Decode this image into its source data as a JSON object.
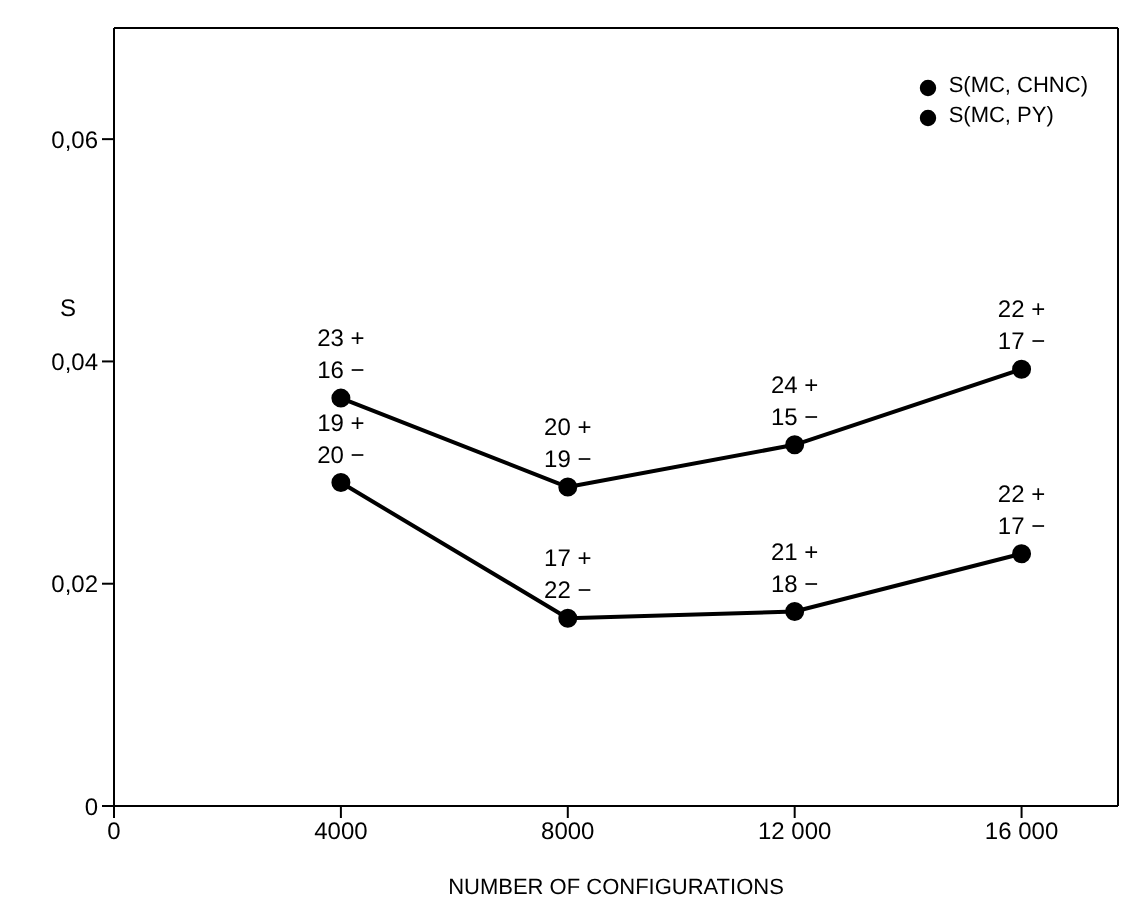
{
  "chart_data": {
    "type": "line",
    "xlabel": "NUMBER OF CONFIGURATIONS",
    "ylabel": "S",
    "x": [
      4000,
      8000,
      12000,
      16000
    ],
    "series": [
      {
        "name": "S(MC, CHNC)",
        "color": "#000000",
        "values": [
          0.0367,
          0.0287,
          0.0325,
          0.0393
        ]
      },
      {
        "name": "S(MC, PY)",
        "color": "#000000",
        "values": [
          0.0291,
          0.0169,
          0.0175,
          0.0227
        ]
      }
    ],
    "annotations": [
      {
        "text": "23 + 16 −",
        "x": 4000,
        "y": 0.0367
      },
      {
        "text": "20 + 19 −",
        "x": 8000,
        "y": 0.0287
      },
      {
        "text": "24 + 15 −",
        "x": 12000,
        "y": 0.0325
      },
      {
        "text": "22 + 17 −",
        "x": 16000,
        "y": 0.0393
      },
      {
        "text": "19 + 20 −",
        "x": 4000,
        "y": 0.0291
      },
      {
        "text": "17 + 22 −",
        "x": 8000,
        "y": 0.0169
      },
      {
        "text": "21 + 18 −",
        "x": 12000,
        "y": 0.0175
      },
      {
        "text": "22 + 17 −",
        "x": 16000,
        "y": 0.0227
      }
    ],
    "xlim": [
      0,
      17700
    ],
    "xticks": [
      0,
      4000,
      8000,
      {
        "value": 12000,
        "label": "12 000"
      },
      {
        "value": 16000,
        "label": "16 000"
      }
    ],
    "ylim": [
      0,
      0.07
    ],
    "yticks": [
      0,
      {
        "value": 0.02,
        "label": "0,02"
      },
      {
        "value": 0.04,
        "label": "0,04"
      },
      {
        "value": 0.06,
        "label": "0,06"
      }
    ],
    "marker": "circle",
    "grid": false,
    "legend": "top right"
  }
}
